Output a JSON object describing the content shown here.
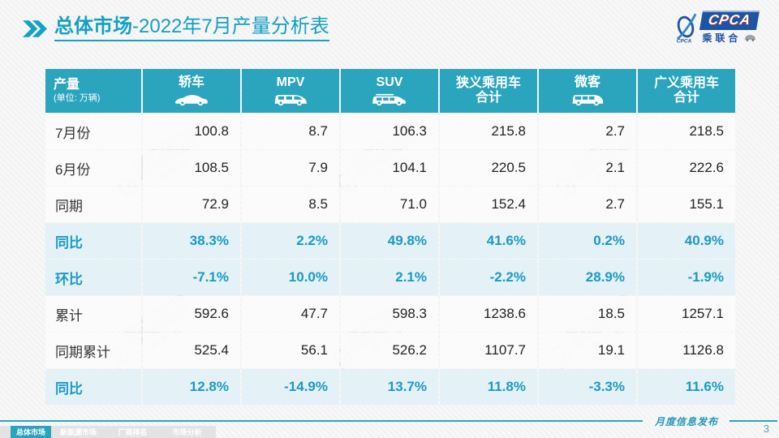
{
  "slide": {
    "title": {
      "primary": "总体市场",
      "secondary": "-2022年7月产量分析表"
    },
    "logo": {
      "acronym": "CPCA",
      "chinese": "乘联合"
    },
    "watermark": {
      "acronym": "CPCA",
      "chinese": "乘联合"
    },
    "footer": {
      "tabs": [
        {
          "label": "总体市场",
          "active": true
        },
        {
          "label": "新能源市场",
          "active": false
        },
        {
          "label": "厂商排名",
          "active": false
        },
        {
          "label": "市场分析",
          "active": false
        }
      ],
      "publication": "月度信息发布",
      "page_number": "3"
    },
    "colors": {
      "accent": "#1ba2c4",
      "table_header_bg": "#2ba4be",
      "highlight_row_bg": "#e4f1f7",
      "highlight_text": "#1b9ac4",
      "logo_blue": "#1c55a5"
    }
  },
  "chart_data": {
    "type": "table",
    "title": "总体市场-2022年7月产量分析表",
    "corner": {
      "label": "产量",
      "unit": "(单位: 万辆)"
    },
    "columns": [
      {
        "label": "轿车",
        "icon": "sedan-icon"
      },
      {
        "label": "MPV",
        "icon": "mpv-icon"
      },
      {
        "label": "SUV",
        "icon": "suv-icon"
      },
      {
        "label": "狭义乘用车",
        "label2": "合计"
      },
      {
        "label": "微客",
        "icon": "microvan-icon"
      },
      {
        "label": "广义乘用车",
        "label2": "合计"
      }
    ],
    "rows": [
      {
        "label": "7月份",
        "highlight": false,
        "values": [
          "100.8",
          "8.7",
          "106.3",
          "215.8",
          "2.7",
          "218.5"
        ]
      },
      {
        "label": "6月份",
        "highlight": false,
        "values": [
          "108.5",
          "7.9",
          "104.1",
          "220.5",
          "2.1",
          "222.6"
        ]
      },
      {
        "label": "同期",
        "highlight": false,
        "values": [
          "72.9",
          "8.5",
          "71.0",
          "152.4",
          "2.7",
          "155.1"
        ]
      },
      {
        "label": "同比",
        "highlight": true,
        "values": [
          "38.3%",
          "2.2%",
          "49.8%",
          "41.6%",
          "0.2%",
          "40.9%"
        ]
      },
      {
        "label": "环比",
        "highlight": true,
        "values": [
          "-7.1%",
          "10.0%",
          "2.1%",
          "-2.2%",
          "28.9%",
          "-1.9%"
        ]
      },
      {
        "label": "累计",
        "highlight": false,
        "values": [
          "592.6",
          "47.7",
          "598.3",
          "1238.6",
          "18.5",
          "1257.1"
        ]
      },
      {
        "label": "同期累计",
        "highlight": false,
        "values": [
          "525.4",
          "56.1",
          "526.2",
          "1107.7",
          "19.1",
          "1126.8"
        ]
      },
      {
        "label": "同比",
        "highlight": true,
        "values": [
          "12.8%",
          "-14.9%",
          "13.7%",
          "11.8%",
          "-3.3%",
          "11.6%"
        ]
      }
    ]
  }
}
